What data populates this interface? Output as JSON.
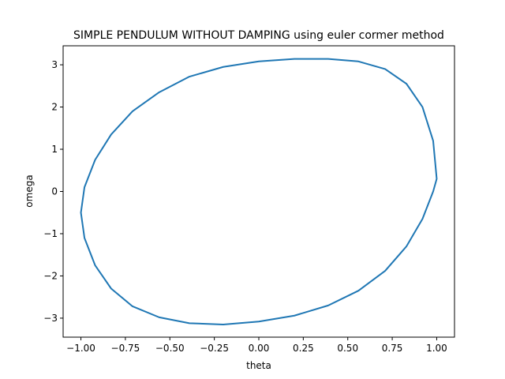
{
  "chart_data": {
    "type": "line",
    "title": "SIMPLE PENDULUM WITHOUT DAMPING using euler cormer method",
    "xlabel": "theta",
    "ylabel": "omega",
    "xlim": [
      -1.1,
      1.1
    ],
    "ylim": [
      -3.45,
      3.45
    ],
    "xticks": [
      -1.0,
      -0.75,
      -0.5,
      -0.25,
      0.0,
      0.25,
      0.5,
      0.75,
      1.0
    ],
    "xtick_labels": [
      "−1.00",
      "−0.75",
      "−0.50",
      "−0.25",
      "0.00",
      "0.25",
      "0.50",
      "0.75",
      "1.00"
    ],
    "yticks": [
      -3,
      -2,
      -1,
      0,
      1,
      2,
      3
    ],
    "ytick_labels": [
      "−3",
      "−2",
      "−1",
      "0",
      "1",
      "2",
      "3"
    ],
    "grid": false,
    "series": [
      {
        "color": "#1f77b4",
        "x": [
          1.0,
          0.98,
          0.92,
          0.83,
          0.71,
          0.56,
          0.39,
          0.2,
          0.0,
          -0.2,
          -0.39,
          -0.56,
          -0.71,
          -0.83,
          -0.92,
          -0.98,
          -1.0,
          -0.98,
          -0.92,
          -0.83,
          -0.71,
          -0.56,
          -0.39,
          -0.2,
          0.0,
          0.2,
          0.39,
          0.56,
          0.71,
          0.83,
          0.92,
          0.98,
          1.0
        ],
        "y": [
          0.3,
          1.2,
          2.0,
          2.55,
          2.9,
          3.08,
          3.14,
          3.14,
          3.08,
          2.95,
          2.72,
          2.35,
          1.9,
          1.35,
          0.75,
          0.1,
          -0.5,
          -1.1,
          -1.75,
          -2.3,
          -2.72,
          -2.98,
          -3.12,
          -3.15,
          -3.08,
          -2.94,
          -2.7,
          -2.35,
          -1.88,
          -1.3,
          -0.65,
          0.0,
          0.3
        ]
      }
    ]
  }
}
